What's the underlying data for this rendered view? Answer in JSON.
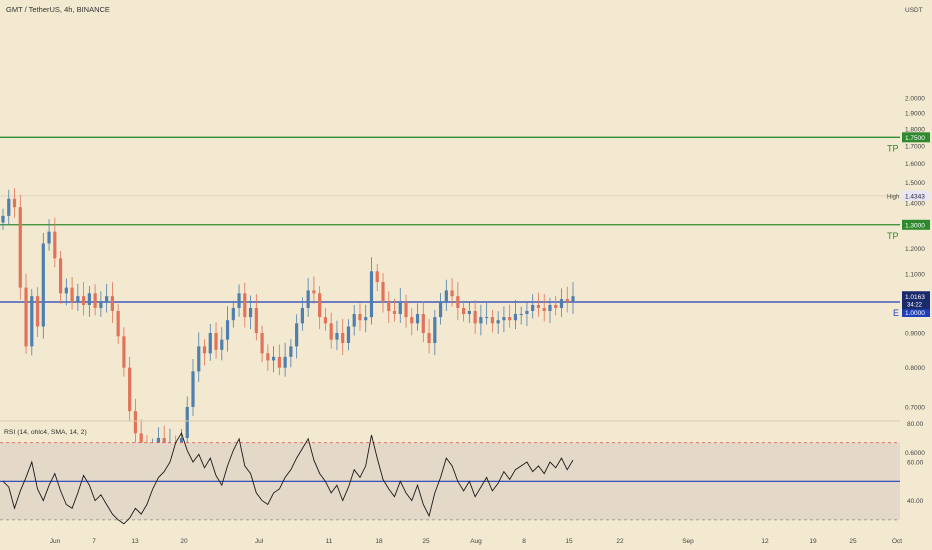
{
  "header": {
    "title": "GMT / TetherUS, 4h, BINANCE",
    "currency": "USDT"
  },
  "colors": {
    "background": "#f2e9d0",
    "up": "#4f7fae",
    "down": "#e0735a",
    "entry_line": "#1f3fb8",
    "tp_line": "#2f8a2f",
    "rsi_line": "#1a1a1a",
    "rsi_band": "#e4d9c8"
  },
  "chart_data": [
    {
      "type": "candlestick",
      "title": "GMT / TetherUS, 4h, BINANCE",
      "ylim": [
        0.55,
        2.1
      ],
      "y_ticks": [
        "2.0000",
        "1.9000",
        "1.8000",
        "1.7000",
        "1.6000",
        "1.5000",
        "1.4000",
        "1.2000",
        "1.1000",
        "0.9000",
        "0.8000",
        "0.7000",
        "0.6000"
      ],
      "x_ticks": [
        "Jun",
        "7",
        "13",
        "20",
        "Jul",
        "11",
        "18",
        "25",
        "Aug",
        "8",
        "15",
        "22",
        "Sep",
        "12",
        "19",
        "25",
        "Oct"
      ],
      "closes": [
        1.34,
        1.42,
        1.38,
        1.05,
        0.86,
        1.02,
        0.92,
        1.22,
        1.27,
        1.16,
        1.03,
        1.05,
        1.0,
        1.02,
        0.99,
        1.03,
        0.98,
        1.0,
        1.02,
        0.97,
        0.89,
        0.8,
        0.69,
        0.64,
        0.62,
        0.6,
        0.61,
        0.63,
        0.6,
        0.62,
        0.59,
        0.63,
        0.7,
        0.79,
        0.86,
        0.84,
        0.9,
        0.85,
        0.88,
        0.94,
        0.98,
        1.03,
        0.95,
        0.98,
        0.9,
        0.84,
        0.82,
        0.83,
        0.8,
        0.83,
        0.86,
        0.93,
        0.98,
        1.04,
        1.03,
        0.95,
        0.93,
        0.88,
        0.9,
        0.87,
        0.92,
        0.96,
        0.94,
        0.95,
        1.11,
        1.07,
        1.0,
        0.97,
        0.96,
        1.0,
        0.95,
        0.93,
        0.96,
        0.9,
        0.87,
        0.95,
        1.0,
        1.04,
        1.02,
        0.98,
        0.96,
        0.97,
        0.93,
        0.95,
        0.95,
        0.93,
        0.94,
        0.95,
        0.94,
        0.96,
        0.96,
        0.97,
        0.99,
        0.98,
        0.97,
        0.99,
        0.98,
        1.01,
        1.0,
        1.02
      ],
      "series": [
        {
          "name": "High",
          "values": [
            1.4343
          ]
        }
      ],
      "levels": [
        {
          "label": "TP",
          "value": 1.75,
          "tag": "1.7500"
        },
        {
          "label": "TP",
          "value": 1.3,
          "tag": "1.3000"
        },
        {
          "label": "E",
          "value": 1.0,
          "tag": "1.0000"
        }
      ],
      "last_price": "1.0163",
      "countdown": "34:22",
      "high_label": "High",
      "high_value": "1.4343"
    },
    {
      "type": "line",
      "title": "RSI (14, ohlc4, SMA, 14, 2)",
      "ylim": [
        30,
        82
      ],
      "y_ticks": [
        "80.00",
        "60.00",
        "40.00"
      ],
      "upper_band": 70,
      "lower_band": 30,
      "sma_level": 50,
      "values": [
        50,
        47,
        36,
        45,
        52,
        60,
        46,
        40,
        48,
        54,
        45,
        38,
        36,
        44,
        53,
        48,
        40,
        43,
        38,
        33,
        30,
        28,
        31,
        36,
        33,
        38,
        46,
        52,
        55,
        60,
        70,
        75,
        66,
        60,
        64,
        57,
        62,
        53,
        48,
        58,
        66,
        72,
        58,
        54,
        44,
        40,
        38,
        44,
        46,
        52,
        56,
        62,
        67,
        72,
        61,
        54,
        50,
        44,
        48,
        40,
        47,
        56,
        52,
        58,
        74,
        62,
        51,
        46,
        42,
        50,
        44,
        40,
        48,
        38,
        32,
        44,
        52,
        62,
        58,
        50,
        45,
        50,
        42,
        47,
        52,
        45,
        49,
        55,
        51,
        56,
        58,
        60,
        55,
        58,
        54,
        60,
        57,
        62,
        56,
        61
      ]
    }
  ]
}
